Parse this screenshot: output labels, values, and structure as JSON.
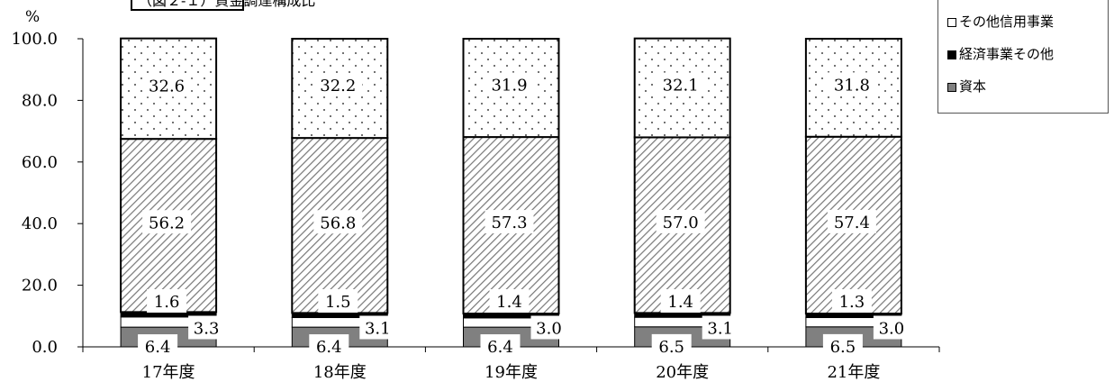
{
  "chart_data": {
    "type": "bar",
    "stacked": true,
    "title": "（図２‐１）資金調達構成比",
    "ylabel": "%",
    "ylim": [
      0,
      100
    ],
    "yticks": [
      "0.0",
      "20.0",
      "40.0",
      "60.0",
      "80.0",
      "100.0"
    ],
    "categories": [
      "17年度",
      "18年度",
      "19年度",
      "20年度",
      "21年度"
    ],
    "legend_position": "top-right",
    "grid": false,
    "series": [
      {
        "name": "資本",
        "values": [
          6.4,
          6.4,
          6.4,
          6.5,
          6.5
        ],
        "labels": [
          "6.4",
          "6.4",
          "6.4",
          "6.5",
          "6.5"
        ],
        "color": "#808080",
        "pattern": "solid"
      },
      {
        "name": "",
        "values": [
          3.3,
          3.1,
          3.0,
          3.1,
          3.0
        ],
        "labels": [
          "3.3",
          "3.1",
          "3.0",
          "3.1",
          "3.0"
        ],
        "color": "#ffffff",
        "pattern": "white"
      },
      {
        "name": "経済事業その他",
        "values": [
          1.6,
          1.5,
          1.4,
          1.4,
          1.3
        ],
        "labels": [
          "1.6",
          "1.5",
          "1.4",
          "1.4",
          "1.3"
        ],
        "color": "#000000",
        "pattern": "solid"
      },
      {
        "name": "",
        "values": [
          56.2,
          56.8,
          57.3,
          57.0,
          57.4
        ],
        "labels": [
          "56.2",
          "56.8",
          "57.3",
          "57.0",
          "57.4"
        ],
        "color": "#ffffff",
        "pattern": "hatch"
      },
      {
        "name": "その他信用事業",
        "values": [
          32.6,
          32.2,
          31.9,
          32.1,
          31.8
        ],
        "labels": [
          "32.6",
          "32.2",
          "31.9",
          "32.1",
          "31.8"
        ],
        "color": "#ffffff",
        "pattern": "dots"
      }
    ],
    "legend": [
      {
        "label": "その他信用事業",
        "icon": "white-square-icon",
        "color": "#ffffff"
      },
      {
        "label": "経済事業その他",
        "icon": "black-square-icon",
        "color": "#000000"
      },
      {
        "label": "資本",
        "icon": "gray-square-icon",
        "color": "#808080"
      }
    ]
  }
}
